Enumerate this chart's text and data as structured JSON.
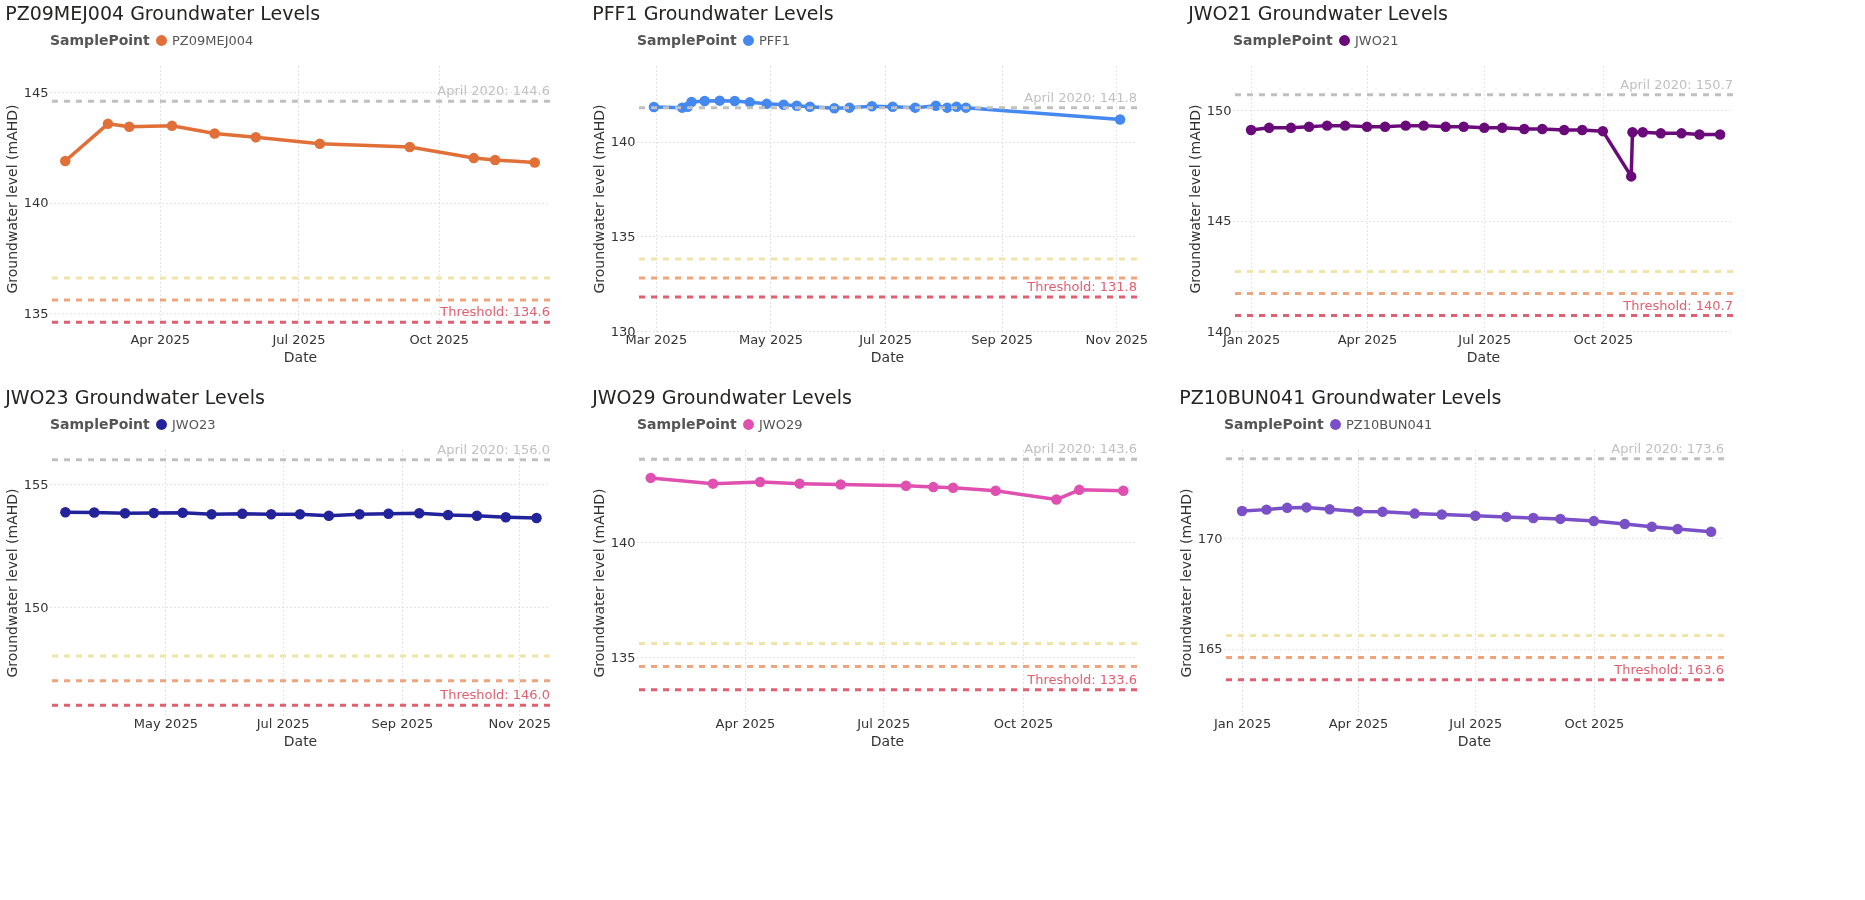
{
  "chart_data": [
    {
      "type": "line",
      "title": "PZ09MEJ004 Groundwater Levels",
      "xlabel": "Date",
      "ylabel": "Groundwater level (mAHD)",
      "legend_title": "SamplePoint",
      "legend": "top left",
      "grid": true,
      "marker": "circle",
      "series": [
        {
          "name": "PZ09MEJ004",
          "color": "#e07038",
          "x": [
            "2025-01-29",
            "2025-02-26",
            "2025-03-12",
            "2025-04-09",
            "2025-05-07",
            "2025-06-03",
            "2025-07-15",
            "2025-09-12",
            "2025-10-24",
            "2025-11-07",
            "2025-12-03"
          ],
          "values": [
            141.9,
            143.58,
            143.45,
            143.49,
            143.14,
            142.97,
            142.68,
            142.53,
            142.03,
            141.94,
            141.83
          ]
        }
      ],
      "xlim": [
        "2025-01-19",
        "2025-12-13"
      ],
      "ylim": [
        134.2,
        146.2
      ],
      "xticks": [
        {
          "value": "2025-04-01",
          "label": "Apr 2025"
        },
        {
          "value": "2025-07-01",
          "label": "Jul 2025"
        },
        {
          "value": "2025-10-01",
          "label": "Oct 2025"
        }
      ],
      "yticks": [
        135,
        140,
        145
      ],
      "ref_lines": [
        {
          "axis": "y",
          "value": 144.6,
          "label": "April 2020: 144.6",
          "color": "#c0c0c0",
          "line_style": "dashed"
        },
        {
          "axis": "y",
          "value": 136.6,
          "color": "#f0e4a8",
          "line_style": "dashed"
        },
        {
          "axis": "y",
          "value": 135.6,
          "color": "#f0a47c",
          "line_style": "dashed"
        },
        {
          "axis": "y",
          "value": 134.6,
          "label": "Threshold: 134.6",
          "color": "#e06070",
          "line_style": "dashed"
        }
      ]
    },
    {
      "type": "line",
      "title": "PFF1 Groundwater Levels",
      "xlabel": "Date",
      "ylabel": "Groundwater level (mAHD)",
      "legend_title": "SamplePoint",
      "legend": "top left",
      "grid": true,
      "marker": "circle",
      "series": [
        {
          "name": "PFF1",
          "color": "#4488f0",
          "x": [
            "2025-02-28",
            "2025-03-15",
            "2025-03-18",
            "2025-03-20",
            "2025-03-27",
            "2025-04-04",
            "2025-04-12",
            "2025-04-20",
            "2025-04-29",
            "2025-05-08",
            "2025-05-15",
            "2025-05-22",
            "2025-06-04",
            "2025-06-12",
            "2025-06-24",
            "2025-07-05",
            "2025-07-17",
            "2025-07-28",
            "2025-08-03",
            "2025-08-08",
            "2025-08-13",
            "2025-11-03"
          ],
          "values": [
            141.83,
            141.8,
            141.85,
            142.1,
            142.15,
            142.17,
            142.15,
            142.08,
            142.0,
            141.95,
            141.9,
            141.85,
            141.77,
            141.8,
            141.87,
            141.85,
            141.8,
            141.9,
            141.8,
            141.85,
            141.8,
            141.17
          ]
        }
      ],
      "xlim": [
        "2025-02-19",
        "2025-11-12"
      ],
      "ylim": [
        130,
        144
      ],
      "xticks": [
        {
          "value": "2025-03-01",
          "label": "Mar 2025"
        },
        {
          "value": "2025-05-01",
          "label": "May 2025"
        },
        {
          "value": "2025-07-01",
          "label": "Jul 2025"
        },
        {
          "value": "2025-09-01",
          "label": "Sep 2025"
        },
        {
          "value": "2025-11-01",
          "label": "Nov 2025"
        }
      ],
      "yticks": [
        130,
        135,
        140
      ],
      "ref_lines": [
        {
          "axis": "y",
          "value": 141.8,
          "label": "April 2020: 141.8",
          "color": "#c0c0c0",
          "line_style": "dashed"
        },
        {
          "axis": "y",
          "value": 133.8,
          "color": "#f0e4a8",
          "line_style": "dashed"
        },
        {
          "axis": "y",
          "value": 132.8,
          "color": "#f0a47c",
          "line_style": "dashed"
        },
        {
          "axis": "y",
          "value": 131.8,
          "label": "Threshold: 131.8",
          "color": "#e06070",
          "line_style": "dashed"
        }
      ]
    },
    {
      "type": "line",
      "title": "JWO21 Groundwater Levels",
      "xlabel": "Date",
      "ylabel": "Groundwater level (mAHD)",
      "legend_title": "SamplePoint",
      "legend": "top left",
      "grid": true,
      "marker": "circle",
      "series": [
        {
          "name": "JWO21",
          "color": "#6a0a7a",
          "x": [
            "2025-01-01",
            "2025-01-15",
            "2025-02-01",
            "2025-02-15",
            "2025-03-01",
            "2025-03-15",
            "2025-04-01",
            "2025-04-15",
            "2025-05-01",
            "2025-05-15",
            "2025-06-01",
            "2025-06-15",
            "2025-07-01",
            "2025-07-15",
            "2025-08-01",
            "2025-08-15",
            "2025-09-01",
            "2025-09-15",
            "2025-10-01",
            "2025-10-23",
            "2025-10-24",
            "2025-11-01",
            "2025-11-15",
            "2025-12-01",
            "2025-12-15",
            "2025-12-31"
          ],
          "values": [
            149.1,
            149.2,
            149.2,
            149.25,
            149.3,
            149.3,
            149.25,
            149.25,
            149.3,
            149.3,
            149.25,
            149.25,
            149.2,
            149.2,
            149.15,
            149.15,
            149.1,
            149.1,
            149.05,
            147.0,
            149.0,
            149.0,
            148.95,
            148.95,
            148.9,
            148.9
          ]
        }
      ],
      "xlim": [
        "2024-12-18",
        "2026-01-10"
      ],
      "ylim": [
        140,
        152
      ],
      "xticks": [
        {
          "value": "2025-01-01",
          "label": "Jan 2025"
        },
        {
          "value": "2025-04-01",
          "label": "Apr 2025"
        },
        {
          "value": "2025-07-01",
          "label": "Jul 2025"
        },
        {
          "value": "2025-10-01",
          "label": "Oct 2025"
        }
      ],
      "yticks": [
        140,
        145,
        150
      ],
      "ref_lines": [
        {
          "axis": "y",
          "value": 150.7,
          "label": "April 2020: 150.7",
          "color": "#c0c0c0",
          "line_style": "dashed"
        },
        {
          "axis": "y",
          "value": 142.7,
          "color": "#f0e4a8",
          "line_style": "dashed"
        },
        {
          "axis": "y",
          "value": 141.7,
          "color": "#f0a47c",
          "line_style": "dashed"
        },
        {
          "axis": "y",
          "value": 140.7,
          "label": "Threshold: 140.7",
          "color": "#e06070",
          "line_style": "dashed"
        }
      ]
    },
    {
      "type": "line",
      "title": "JWO23 Groundwater Levels",
      "xlabel": "Date",
      "ylabel": "Groundwater level (mAHD)",
      "legend_title": "SamplePoint",
      "legend": "top left",
      "grid": true,
      "marker": "circle",
      "series": [
        {
          "name": "JWO23",
          "color": "#22229a",
          "x": [
            "2025-03-10",
            "2025-03-25",
            "2025-04-10",
            "2025-04-25",
            "2025-05-10",
            "2025-05-25",
            "2025-06-10",
            "2025-06-25",
            "2025-07-10",
            "2025-07-25",
            "2025-08-10",
            "2025-08-25",
            "2025-09-10",
            "2025-09-25",
            "2025-10-10",
            "2025-10-25",
            "2025-11-10"
          ],
          "values": [
            153.86,
            153.85,
            153.82,
            153.83,
            153.84,
            153.78,
            153.8,
            153.78,
            153.78,
            153.72,
            153.78,
            153.8,
            153.82,
            153.75,
            153.72,
            153.66,
            153.63
          ]
        }
      ],
      "xlim": [
        "2025-03-02",
        "2025-11-17"
      ],
      "ylim": [
        145.6,
        156.4
      ],
      "xticks": [
        {
          "value": "2025-05-01",
          "label": "May 2025"
        },
        {
          "value": "2025-07-01",
          "label": "Jul 2025"
        },
        {
          "value": "2025-09-01",
          "label": "Sep 2025"
        },
        {
          "value": "2025-11-01",
          "label": "Nov 2025"
        }
      ],
      "yticks": [
        150,
        155
      ],
      "ref_lines": [
        {
          "axis": "y",
          "value": 156.0,
          "label": "April 2020: 156.0",
          "color": "#c0c0c0",
          "line_style": "dashed"
        },
        {
          "axis": "y",
          "value": 148.0,
          "color": "#f0e4a8",
          "line_style": "dashed"
        },
        {
          "axis": "y",
          "value": 147.0,
          "color": "#f0a47c",
          "line_style": "dashed"
        },
        {
          "axis": "y",
          "value": 146.0,
          "label": "Threshold: 146.0",
          "color": "#e06070",
          "line_style": "dashed"
        }
      ]
    },
    {
      "type": "line",
      "title": "JWO29 Groundwater Levels",
      "xlabel": "Date",
      "ylabel": "Groundwater level (mAHD)",
      "legend_title": "SamplePoint",
      "legend": "top left",
      "grid": true,
      "marker": "circle",
      "series": [
        {
          "name": "JWO29",
          "color": "#e050b0",
          "x": [
            "2025-01-29",
            "2025-03-11",
            "2025-04-11",
            "2025-05-07",
            "2025-06-03",
            "2025-07-16",
            "2025-08-03",
            "2025-08-16",
            "2025-09-13",
            "2025-10-23",
            "2025-11-07",
            "2025-12-06"
          ],
          "values": [
            142.79,
            142.54,
            142.61,
            142.54,
            142.5,
            142.45,
            142.39,
            142.36,
            142.23,
            141.85,
            142.27,
            142.23
          ]
        }
      ],
      "xlim": [
        "2025-01-20",
        "2025-12-15"
      ],
      "ylim": [
        132.5,
        144.0
      ],
      "xticks": [
        {
          "value": "2025-04-01",
          "label": "Apr 2025"
        },
        {
          "value": "2025-07-01",
          "label": "Jul 2025"
        },
        {
          "value": "2025-10-01",
          "label": "Oct 2025"
        }
      ],
      "yticks": [
        135,
        140
      ],
      "ref_lines": [
        {
          "axis": "y",
          "value": 143.6,
          "label": "April 2020: 143.6",
          "color": "#c0c0c0",
          "line_style": "dashed"
        },
        {
          "axis": "y",
          "value": 135.6,
          "color": "#f0e4a8",
          "line_style": "dashed"
        },
        {
          "axis": "y",
          "value": 134.6,
          "color": "#f0a47c",
          "line_style": "dashed"
        },
        {
          "axis": "y",
          "value": 133.6,
          "label": "Threshold: 133.6",
          "color": "#e06070",
          "line_style": "dashed"
        }
      ]
    },
    {
      "type": "line",
      "title": "PZ10BUN041 Groundwater Levels",
      "xlabel": "Date",
      "ylabel": "Groundwater level (mAHD)",
      "legend_title": "SamplePoint",
      "legend": "top left",
      "grid": true,
      "marker": "circle",
      "series": [
        {
          "name": "PZ10BUN041",
          "color": "#7a50c8",
          "x": [
            "2025-01-01",
            "2025-01-20",
            "2025-02-05",
            "2025-02-20",
            "2025-03-10",
            "2025-04-01",
            "2025-04-20",
            "2025-05-15",
            "2025-06-05",
            "2025-07-01",
            "2025-07-25",
            "2025-08-15",
            "2025-09-05",
            "2025-10-01",
            "2025-10-25",
            "2025-11-15",
            "2025-12-05",
            "2025-12-31"
          ],
          "values": [
            171.24,
            171.3,
            171.38,
            171.4,
            171.32,
            171.22,
            171.2,
            171.12,
            171.08,
            171.02,
            170.97,
            170.92,
            170.88,
            170.78,
            170.65,
            170.52,
            170.42,
            170.3
          ]
        }
      ],
      "xlim": [
        "2024-12-18",
        "2026-01-10"
      ],
      "ylim": [
        162,
        174
      ],
      "xticks": [
        {
          "value": "2025-01-01",
          "label": "Jan 2025"
        },
        {
          "value": "2025-04-01",
          "label": "Apr 2025"
        },
        {
          "value": "2025-07-01",
          "label": "Jul 2025"
        },
        {
          "value": "2025-10-01",
          "label": "Oct 2025"
        }
      ],
      "yticks": [
        165,
        170
      ],
      "ref_lines": [
        {
          "axis": "y",
          "value": 173.6,
          "label": "April 2020: 173.6",
          "color": "#c0c0c0",
          "line_style": "dashed"
        },
        {
          "axis": "y",
          "value": 165.6,
          "color": "#f0e4a8",
          "line_style": "dashed"
        },
        {
          "axis": "y",
          "value": 164.6,
          "color": "#f0a47c",
          "line_style": "dashed"
        },
        {
          "axis": "y",
          "value": 163.6,
          "label": "Threshold: 163.6",
          "color": "#e06070",
          "line_style": "dashed"
        }
      ]
    }
  ]
}
